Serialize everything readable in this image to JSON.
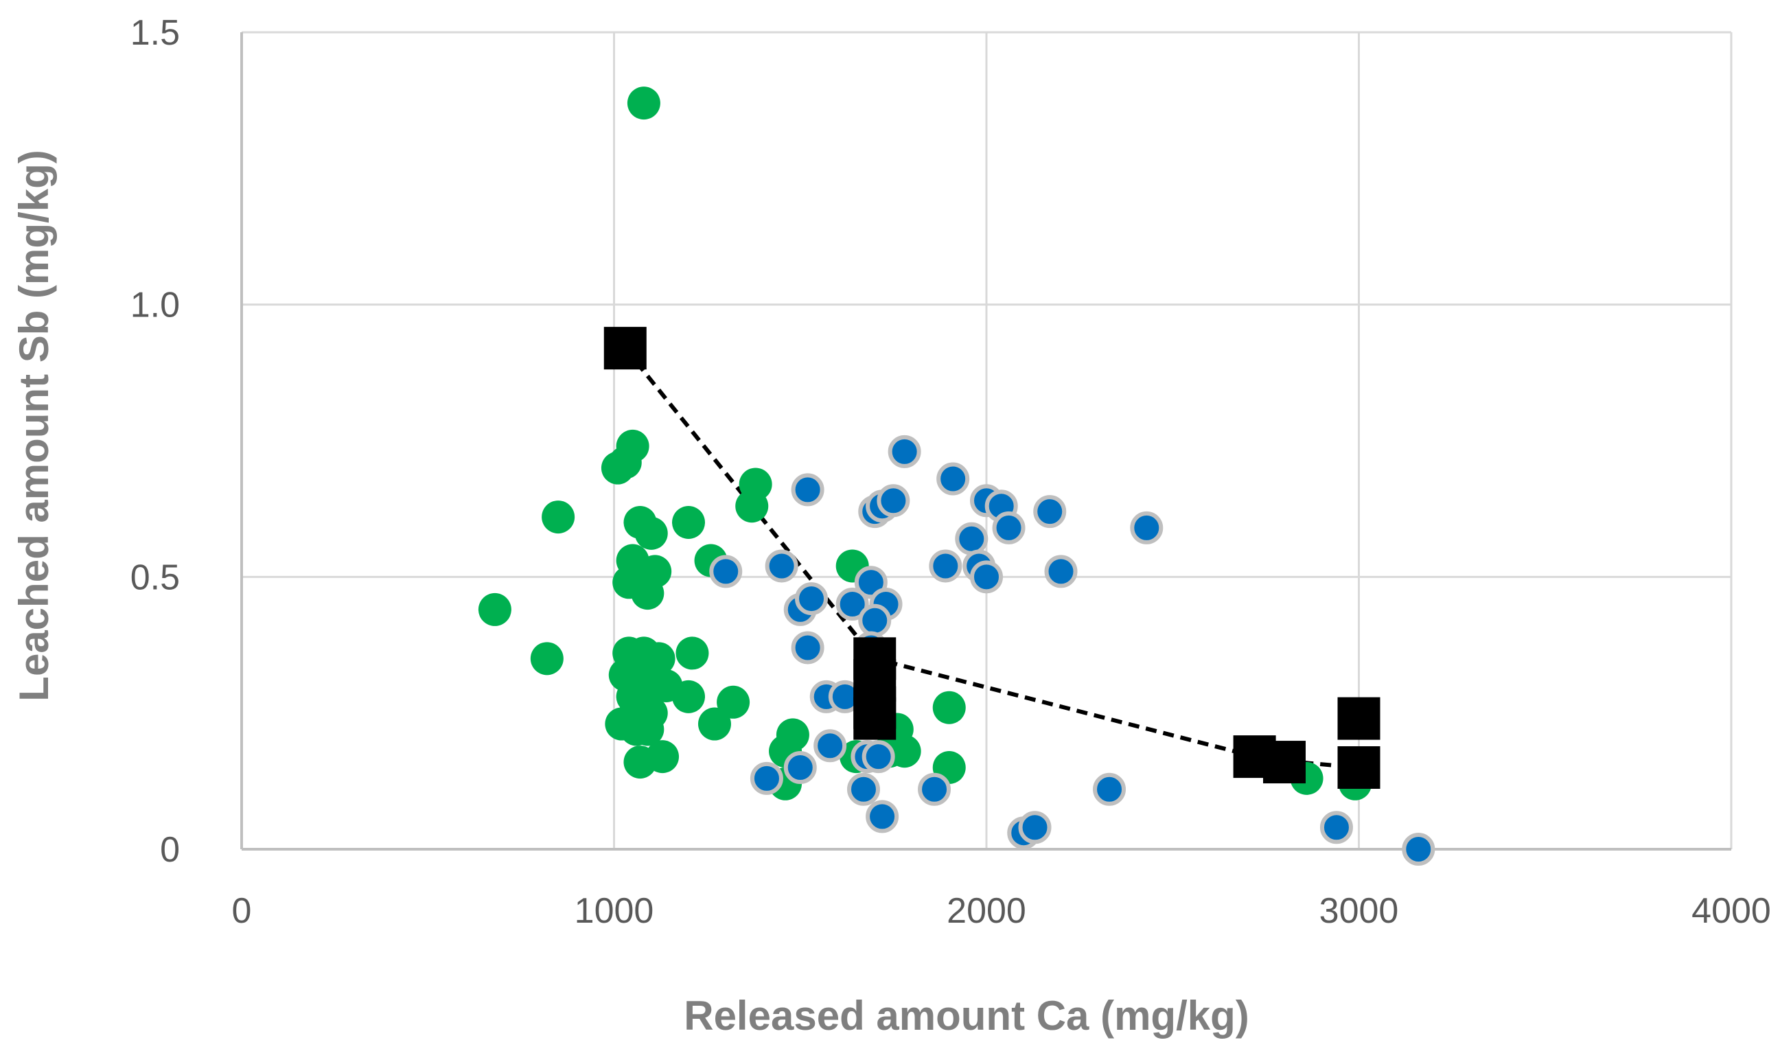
{
  "chart_data": {
    "type": "scatter",
    "title": "",
    "xlabel": "Released amount Ca (mg/kg)",
    "ylabel": "Leached amount  Sb (mg/kg)",
    "xlim": [
      0,
      4000
    ],
    "ylim": [
      0,
      1.5
    ],
    "xticks": [
      0,
      1000,
      2000,
      3000,
      4000
    ],
    "yticks": [
      0,
      0.5,
      1.0,
      1.5
    ],
    "xtick_labels": [
      "0",
      "1000",
      "2000",
      "3000",
      "4000"
    ],
    "ytick_labels": [
      "0",
      "0.5",
      "1.0",
      "1.5"
    ],
    "grid": true,
    "legend": "none",
    "series": [
      {
        "color": "#00b050",
        "marker": "circle",
        "points": [
          [
            1080,
            1.37
          ],
          [
            1050,
            0.74
          ],
          [
            1030,
            0.71
          ],
          [
            1010,
            0.7
          ],
          [
            850,
            0.61
          ],
          [
            1380,
            0.67
          ],
          [
            1370,
            0.63
          ],
          [
            1070,
            0.6
          ],
          [
            1100,
            0.58
          ],
          [
            1200,
            0.6
          ],
          [
            1260,
            0.53
          ],
          [
            1050,
            0.53
          ],
          [
            1110,
            0.51
          ],
          [
            1040,
            0.49
          ],
          [
            1090,
            0.47
          ],
          [
            1640,
            0.52
          ],
          [
            680,
            0.44
          ],
          [
            820,
            0.35
          ],
          [
            1040,
            0.36
          ],
          [
            1080,
            0.36
          ],
          [
            1120,
            0.35
          ],
          [
            1210,
            0.36
          ],
          [
            1030,
            0.32
          ],
          [
            1070,
            0.33
          ],
          [
            1100,
            0.31
          ],
          [
            1060,
            0.3
          ],
          [
            1140,
            0.3
          ],
          [
            1050,
            0.28
          ],
          [
            1090,
            0.28
          ],
          [
            1200,
            0.28
          ],
          [
            1320,
            0.27
          ],
          [
            1060,
            0.26
          ],
          [
            1100,
            0.25
          ],
          [
            1020,
            0.23
          ],
          [
            1060,
            0.22
          ],
          [
            1090,
            0.22
          ],
          [
            1270,
            0.23
          ],
          [
            1480,
            0.21
          ],
          [
            1460,
            0.18
          ],
          [
            1070,
            0.16
          ],
          [
            1130,
            0.17
          ],
          [
            1460,
            0.12
          ],
          [
            1690,
            0.32
          ],
          [
            1900,
            0.26
          ],
          [
            1760,
            0.22
          ],
          [
            1740,
            0.18
          ],
          [
            1780,
            0.18
          ],
          [
            1650,
            0.17
          ],
          [
            1900,
            0.15
          ],
          [
            2860,
            0.13
          ],
          [
            2990,
            0.12
          ]
        ]
      },
      {
        "color": "#0070c0",
        "marker": "circle",
        "points": [
          [
            1780,
            0.73
          ],
          [
            1910,
            0.68
          ],
          [
            1520,
            0.66
          ],
          [
            1700,
            0.62
          ],
          [
            1720,
            0.63
          ],
          [
            1750,
            0.64
          ],
          [
            2000,
            0.64
          ],
          [
            2040,
            0.63
          ],
          [
            2170,
            0.62
          ],
          [
            2060,
            0.59
          ],
          [
            2430,
            0.59
          ],
          [
            1960,
            0.57
          ],
          [
            1300,
            0.51
          ],
          [
            1450,
            0.52
          ],
          [
            1890,
            0.52
          ],
          [
            1980,
            0.52
          ],
          [
            2000,
            0.5
          ],
          [
            2200,
            0.51
          ],
          [
            1690,
            0.49
          ],
          [
            1500,
            0.44
          ],
          [
            1530,
            0.46
          ],
          [
            1640,
            0.45
          ],
          [
            1730,
            0.45
          ],
          [
            1700,
            0.42
          ],
          [
            1520,
            0.37
          ],
          [
            1690,
            0.37
          ],
          [
            1570,
            0.28
          ],
          [
            1620,
            0.28
          ],
          [
            1580,
            0.19
          ],
          [
            1680,
            0.17
          ],
          [
            1710,
            0.17
          ],
          [
            1410,
            0.13
          ],
          [
            1500,
            0.15
          ],
          [
            1670,
            0.11
          ],
          [
            1860,
            0.11
          ],
          [
            2330,
            0.11
          ],
          [
            1720,
            0.06
          ],
          [
            2100,
            0.03
          ],
          [
            2130,
            0.04
          ],
          [
            2940,
            0.04
          ],
          [
            3160,
            0.0
          ]
        ]
      },
      {
        "color": "#000000",
        "marker": "square",
        "line": "dashed",
        "points": [
          [
            1030,
            0.92
          ],
          [
            1700,
            0.35
          ],
          [
            1700,
            0.31
          ],
          [
            1700,
            0.26
          ],
          [
            1700,
            0.24
          ],
          [
            2720,
            0.17
          ],
          [
            2800,
            0.16
          ],
          [
            3000,
            0.24
          ],
          [
            3000,
            0.15
          ]
        ]
      }
    ]
  }
}
